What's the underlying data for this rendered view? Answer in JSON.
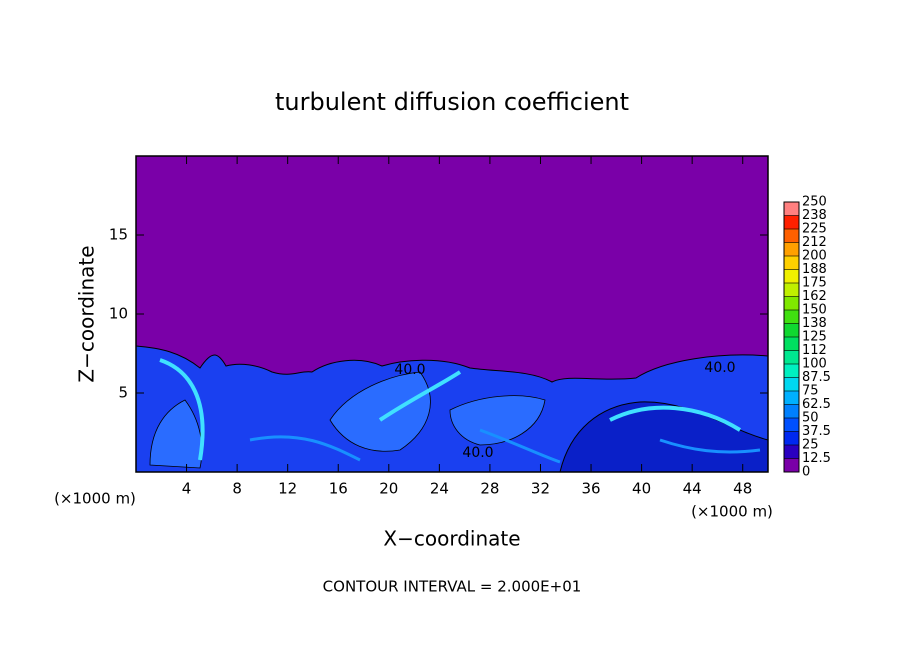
{
  "chart_data": {
    "type": "contour",
    "title": "turbulent diffusion coefficient",
    "x_label": "X−coordinate",
    "y_label": "Z−coordinate",
    "x_unit_left": "(×1000 m)",
    "x_unit_right": "(×1000 m)",
    "footer": "CONTOUR INTERVAL = 2.000E+01",
    "xlim": [
      0,
      50
    ],
    "xticks": [
      4,
      8,
      12,
      16,
      20,
      24,
      28,
      32,
      36,
      40,
      44,
      48
    ],
    "ylim": [
      0,
      20
    ],
    "yticks": [
      5,
      10,
      15
    ],
    "contour_labels": [
      "40.0",
      "40.0",
      "40.0"
    ],
    "colorbar": {
      "levels": [
        0,
        12.5,
        25,
        37.5,
        50,
        62.5,
        75,
        87.5,
        100,
        112,
        125,
        138,
        150,
        162,
        175,
        188,
        200,
        212,
        225,
        238,
        250
      ],
      "colors": [
        "#7a00a8",
        "#2a00c0",
        "#0028f0",
        "#0050ff",
        "#0080ff",
        "#00b0ff",
        "#00d8f0",
        "#00f0c0",
        "#00e890",
        "#00e060",
        "#10d830",
        "#40e010",
        "#80e800",
        "#c0f000",
        "#f0f000",
        "#ffd000",
        "#ffa000",
        "#ff6000",
        "#ff2000",
        "#ff8080"
      ]
    }
  }
}
